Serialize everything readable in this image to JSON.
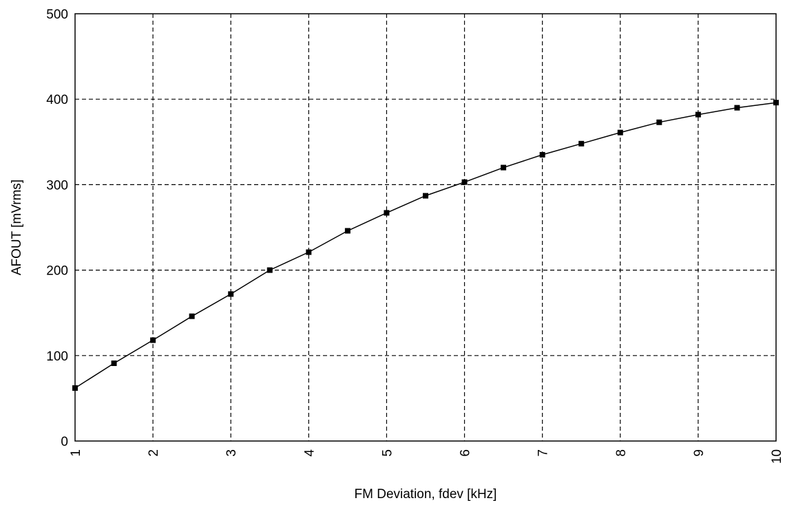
{
  "chart_data": {
    "type": "line",
    "title": "",
    "xlabel": "FM Deviation, fdev [kHz]",
    "ylabel": "AFOUT [mVrms]",
    "xlim": [
      1,
      10
    ],
    "ylim": [
      0,
      500
    ],
    "x_ticks": [
      1,
      2,
      3,
      4,
      5,
      6,
      7,
      8,
      9,
      10
    ],
    "y_ticks": [
      0,
      100,
      200,
      300,
      400,
      500
    ],
    "grid": true,
    "grid_style": "dashed",
    "marker": "square",
    "line_color": "#000000",
    "series": [
      {
        "x": [
          1,
          1.5,
          2,
          2.5,
          3,
          3.5,
          4,
          4.5,
          5,
          5.5,
          6,
          6.5,
          7,
          7.5,
          8,
          8.5,
          9,
          9.5,
          10
        ],
        "y": [
          62,
          91,
          118,
          146,
          172,
          200,
          221,
          246,
          267,
          287,
          303,
          320,
          335,
          348,
          361,
          373,
          382,
          390,
          396
        ]
      }
    ]
  }
}
